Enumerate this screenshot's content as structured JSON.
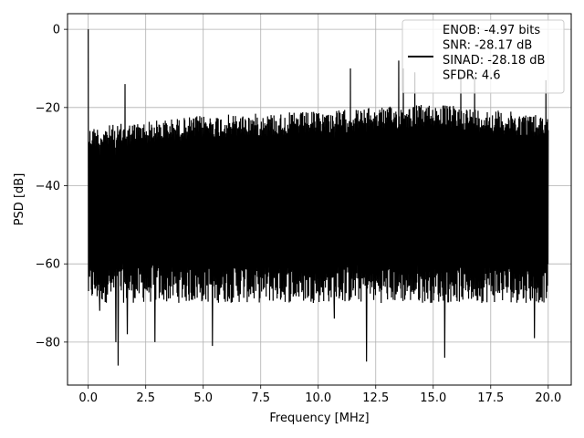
{
  "chart_data": {
    "type": "line",
    "title": "",
    "xlabel": "Frequency [MHz]",
    "ylabel": "PSD [dB]",
    "xlim": [
      -0.9,
      21.0
    ],
    "ylim": [
      -91,
      4
    ],
    "xticks": [
      0.0,
      2.5,
      5.0,
      7.5,
      10.0,
      12.5,
      15.0,
      17.5,
      20.0
    ],
    "xtick_labels": [
      "0.0",
      "2.5",
      "5.0",
      "7.5",
      "10.0",
      "12.5",
      "15.0",
      "17.5",
      "20.0"
    ],
    "yticks": [
      0,
      -20,
      -40,
      -60,
      -80
    ],
    "ytick_labels": [
      "0",
      "−20",
      "−40",
      "−60",
      "−80"
    ],
    "grid": true,
    "legend_position": "top-right",
    "legend_lines": [
      "ENOB: -4.97 bits",
      "SNR: -28.17 dB",
      "SINAD: -28.18 dB",
      "SFDR: 4.6"
    ],
    "series": [
      {
        "color": "#000000",
        "description": "dense noise-floor spectrum",
        "x_range": [
          0.0,
          20.0
        ],
        "floor_upper_db": {
          "x": [
            0,
            5,
            10,
            15,
            20
          ],
          "y": [
            -25,
            -22,
            -21,
            -19,
            -22
          ]
        },
        "floor_lower_db": -65,
        "peaks": [
          {
            "x": 0.0,
            "y": 0.0
          },
          {
            "x": 1.6,
            "y": -14
          },
          {
            "x": 2.9,
            "y": -19
          },
          {
            "x": 11.4,
            "y": -10
          },
          {
            "x": 12.1,
            "y": -13
          },
          {
            "x": 13.5,
            "y": -8
          },
          {
            "x": 13.7,
            "y": -10
          },
          {
            "x": 14.2,
            "y": -11
          },
          {
            "x": 16.2,
            "y": -12
          },
          {
            "x": 16.8,
            "y": -12
          },
          {
            "x": 19.9,
            "y": -13
          }
        ],
        "dips": [
          {
            "x": 0.5,
            "y": -72
          },
          {
            "x": 1.2,
            "y": -80
          },
          {
            "x": 1.3,
            "y": -86
          },
          {
            "x": 1.7,
            "y": -78
          },
          {
            "x": 2.9,
            "y": -80
          },
          {
            "x": 5.4,
            "y": -81
          },
          {
            "x": 12.1,
            "y": -85
          },
          {
            "x": 15.5,
            "y": -84
          },
          {
            "x": 19.4,
            "y": -79
          },
          {
            "x": 10.7,
            "y": -74
          }
        ]
      }
    ]
  }
}
